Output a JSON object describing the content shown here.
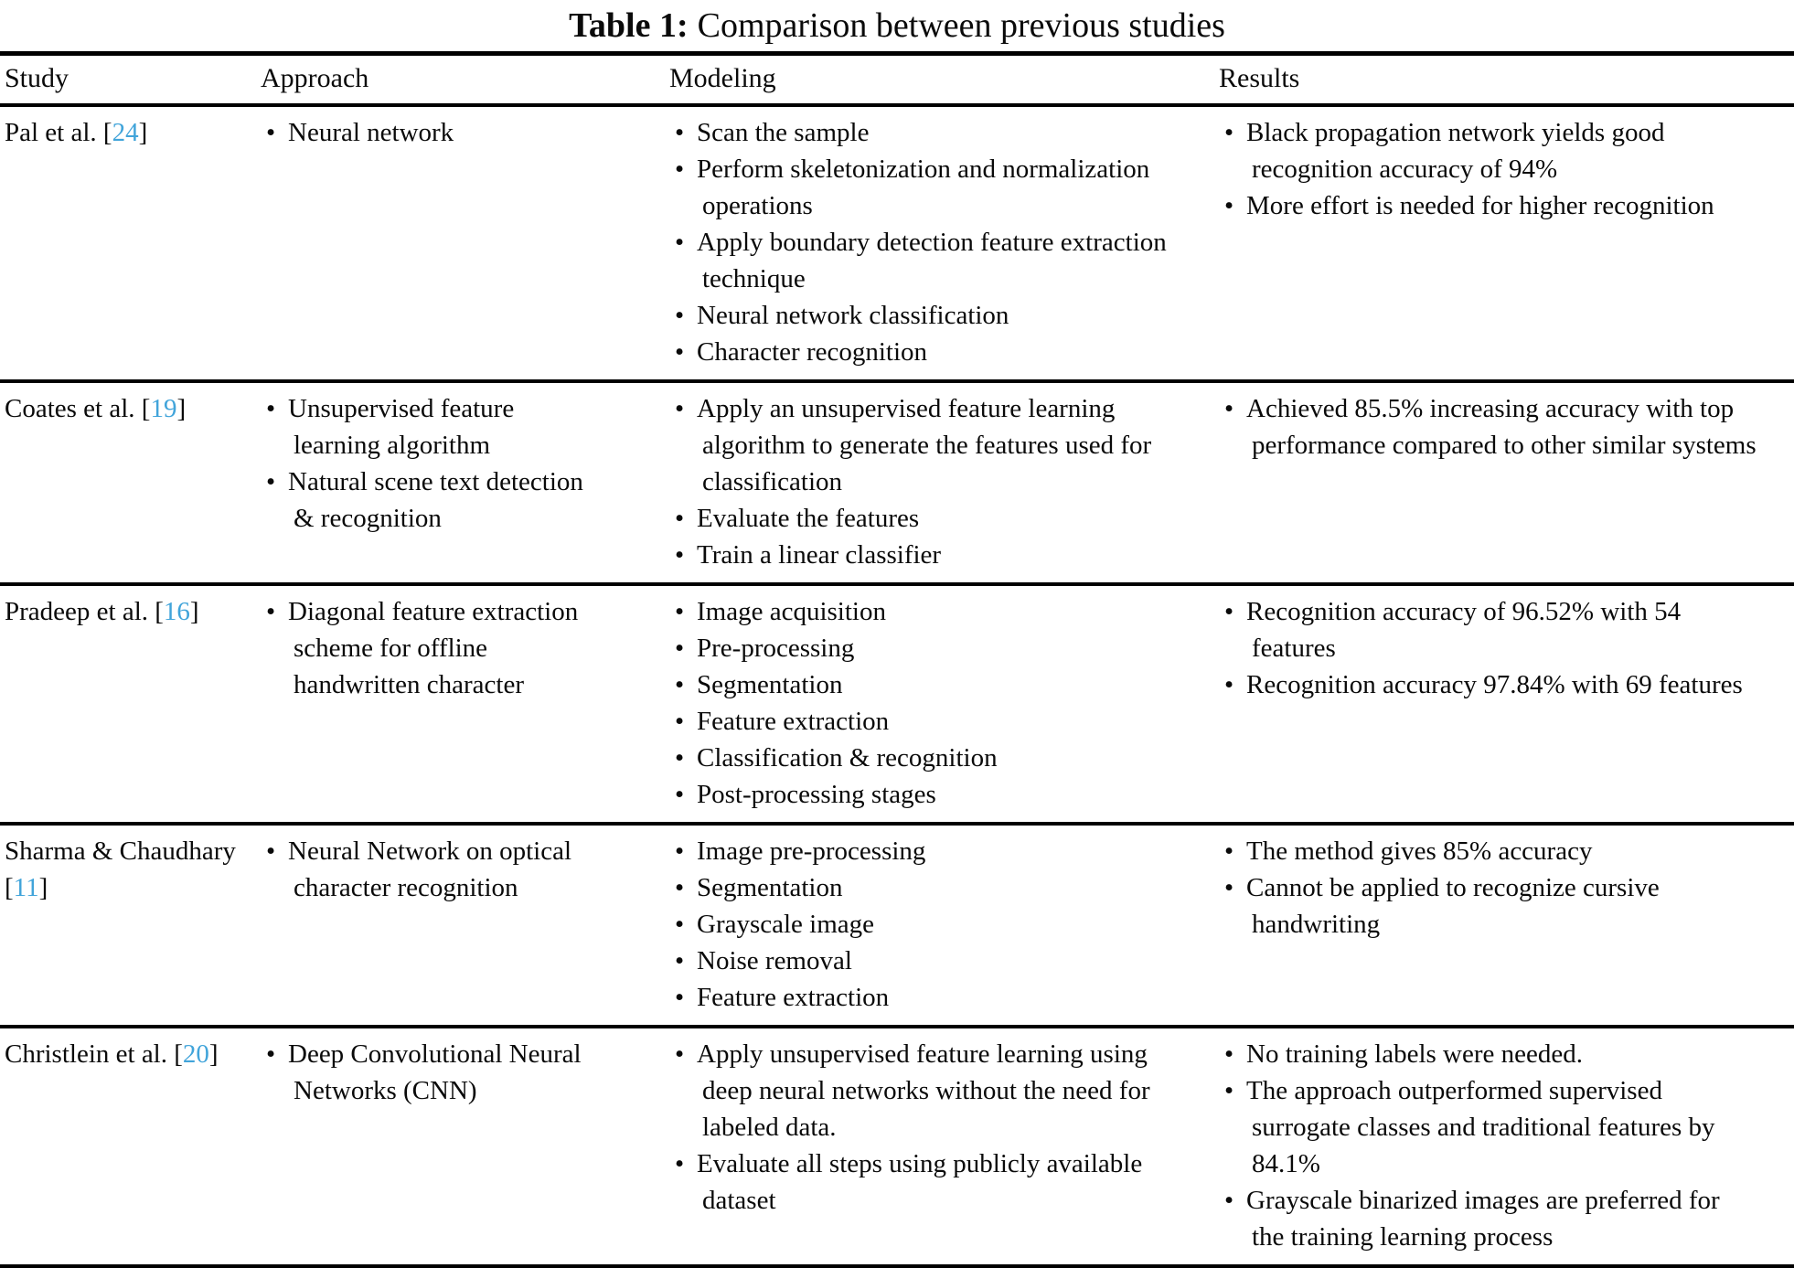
{
  "title": {
    "bold": "Table 1:",
    "rest": "Comparison between previous studies"
  },
  "columns": [
    "Study",
    "Approach",
    "Modeling",
    "Results"
  ],
  "citation_color": "#41a4da",
  "rows": [
    {
      "study": {
        "pre": "Pal et al. [",
        "cite": "24",
        "post": "]"
      },
      "approach": [
        "Neural network"
      ],
      "modeling": [
        "Scan the sample",
        "Perform skeletonization and normalization operations",
        "Apply boundary detection feature extraction technique",
        "Neural network classification",
        "Character recognition"
      ],
      "results": [
        "Black propagation network yields good recognition accuracy of 94%",
        "More effort is needed for higher recognition"
      ]
    },
    {
      "study": {
        "pre": "Coates et al. [",
        "cite": "19",
        "post": "]"
      },
      "approach": [
        "Unsupervised feature learning algorithm",
        "Natural scene text detection & recognition"
      ],
      "modeling": [
        "Apply an unsupervised feature learning algorithm to generate the features used for classification",
        "Evaluate the features",
        "Train a linear classifier"
      ],
      "results": [
        "Achieved 85.5% increasing accuracy with top performance compared to other similar systems"
      ]
    },
    {
      "study": {
        "pre": "Pradeep et al. [",
        "cite": "16",
        "post": "]"
      },
      "approach": [
        "Diagonal feature extraction scheme for offline handwritten character"
      ],
      "modeling": [
        "Image acquisition",
        "Pre-processing",
        "Segmentation",
        "Feature extraction",
        "Classification & recognition",
        "Post-processing stages"
      ],
      "results": [
        "Recognition accuracy of 96.52% with 54 features",
        "Recognition accuracy 97.84% with 69 features"
      ]
    },
    {
      "study": {
        "pre": "Sharma & Chaudhary [",
        "cite": "11",
        "post": "]"
      },
      "approach": [
        "Neural Network on optical character recognition"
      ],
      "modeling": [
        "Image pre-processing",
        "Segmentation",
        "Grayscale image",
        "Noise removal",
        "Feature extraction"
      ],
      "results": [
        "The method gives 85% accuracy",
        "Cannot be applied to recognize cursive handwriting"
      ]
    },
    {
      "study": {
        "pre": "Christlein et al. [",
        "cite": "20",
        "post": "]"
      },
      "approach": [
        "Deep Convolutional Neural Networks (CNN)"
      ],
      "modeling": [
        "Apply unsupervised feature learning using deep neural networks without the need for labeled data.",
        "Evaluate all steps using publicly available dataset"
      ],
      "results": [
        "No training labels were needed.",
        "The approach outperformed supervised surrogate classes and traditional features by 84.1%",
        "Grayscale binarized images are preferred for the training learning process"
      ]
    }
  ]
}
